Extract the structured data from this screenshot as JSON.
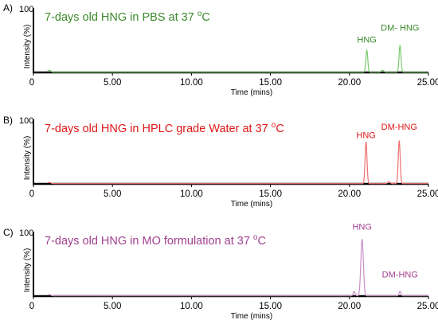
{
  "chart_data": [
    {
      "type": "line",
      "panel_label": "A)",
      "title": "7-days old HNG in PBS at 37 ºC",
      "title_color": "#3a8a2a",
      "line_color": "#7cc870",
      "xlabel": "Time (mins)",
      "ylabel": "Intensity (%)",
      "xlim": [
        0,
        25
      ],
      "ylim": [
        0,
        100
      ],
      "x_ticks": [
        "0",
        "5.00",
        "10.00",
        "15.00",
        "20.00",
        "25.00"
      ],
      "y_ticks": [
        "0",
        "100"
      ],
      "peaks": [
        {
          "name": "HNG",
          "time": 21.1,
          "intensity": 34,
          "width": 0.06
        },
        {
          "name": "DM- HNG",
          "time": 23.2,
          "intensity": 42,
          "width": 0.06
        },
        {
          "name": "",
          "time": 1.0,
          "intensity": 3,
          "width": 0.1
        },
        {
          "name": "",
          "time": 22.1,
          "intensity": 3,
          "width": 0.08
        }
      ],
      "peak_labels": [
        {
          "text": "HNG",
          "time": 21.1,
          "intensity": 46
        },
        {
          "text": "DM- HNG",
          "time": 23.2,
          "intensity": 65
        }
      ]
    },
    {
      "type": "line",
      "panel_label": "B)",
      "title": "7-days old HNG in HPLC grade Water at 37 ºC",
      "title_color": "#e01818",
      "line_color": "#f07070",
      "xlabel": "Time (mins)",
      "ylabel": "Intensity (%)",
      "xlim": [
        0,
        25
      ],
      "ylim": [
        0,
        100
      ],
      "x_ticks": [
        "0",
        "5.00",
        "10.00",
        "15.00",
        "20.00",
        "25.00"
      ],
      "y_ticks": [
        "0",
        "100"
      ],
      "peaks": [
        {
          "name": "HNG",
          "time": 21.05,
          "intensity": 65,
          "width": 0.06
        },
        {
          "name": "DM-HNG",
          "time": 23.15,
          "intensity": 67,
          "width": 0.06
        },
        {
          "name": "",
          "time": 1.0,
          "intensity": 2,
          "width": 0.1
        },
        {
          "name": "",
          "time": 22.5,
          "intensity": 3,
          "width": 0.08
        }
      ],
      "peak_labels": [
        {
          "text": "HNG",
          "time": 21.05,
          "intensity": 71
        },
        {
          "text": "DM-HNG",
          "time": 23.15,
          "intensity": 84
        }
      ]
    },
    {
      "type": "line",
      "panel_label": "C)",
      "title": "7-days old HNG in MO formulation at 37 ºC",
      "title_color": "#a04090",
      "line_color": "#c890c8",
      "xlabel": "Time (mins)",
      "ylabel": "Intensity (%)",
      "xlim": [
        0,
        25
      ],
      "ylim": [
        0,
        100
      ],
      "x_ticks": [
        "0",
        "5.00",
        "10.00",
        "15.00",
        "20.00",
        "25.00"
      ],
      "y_ticks": [
        "0",
        "100"
      ],
      "peaks": [
        {
          "name": "HNG",
          "time": 20.8,
          "intensity": 88,
          "width": 0.08
        },
        {
          "name": "DM-HNG",
          "time": 23.2,
          "intensity": 7,
          "width": 0.06
        },
        {
          "name": "",
          "time": 20.3,
          "intensity": 7,
          "width": 0.06
        },
        {
          "name": "",
          "time": 1.0,
          "intensity": 2,
          "width": 0.1
        }
      ],
      "peak_labels": [
        {
          "text": "HNG",
          "time": 20.8,
          "intensity": 103
        },
        {
          "text": "DM-HNG",
          "time": 23.2,
          "intensity": 29
        }
      ]
    }
  ]
}
